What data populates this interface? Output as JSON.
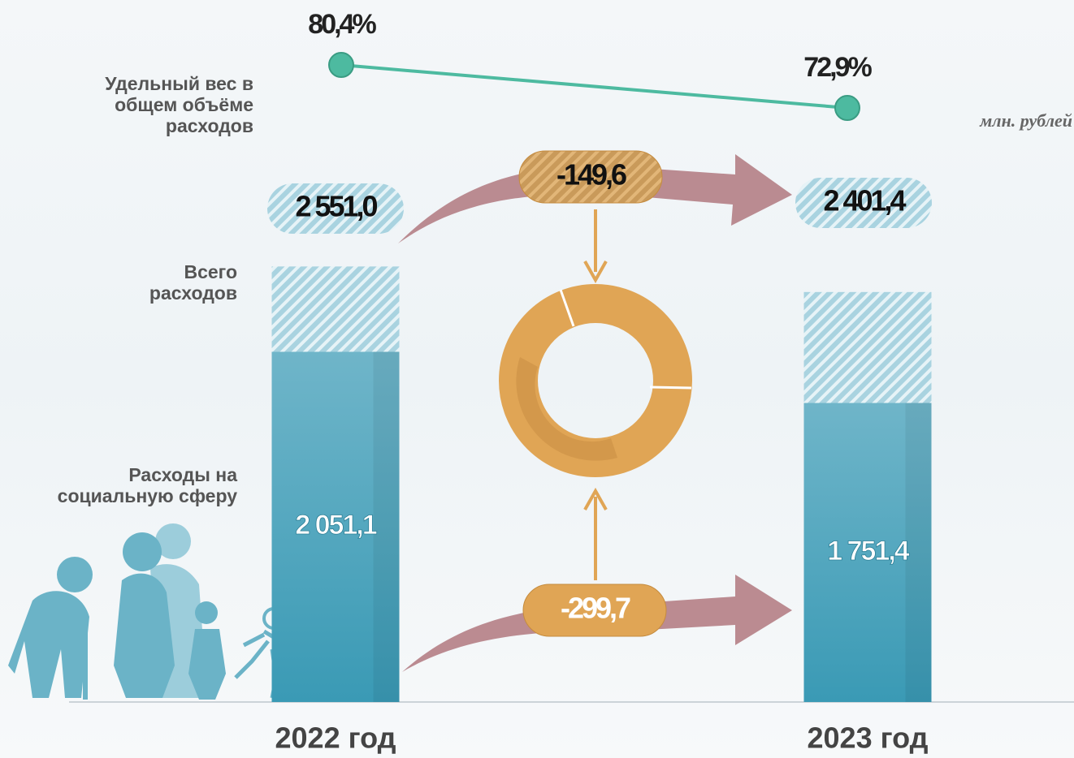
{
  "chart_data": {
    "type": "bar",
    "unit": "млн. рублей",
    "categories": [
      "2022 год",
      "2023 год"
    ],
    "ylim": [
      0,
      2700
    ],
    "y2lim": [
      70,
      85
    ],
    "series": [
      {
        "name": "Всего расходов",
        "color": "#a9d3e0",
        "values": [
          2551.0,
          2401.4
        ],
        "value_labels": [
          "2 551,0",
          "2 401,4"
        ]
      },
      {
        "name": "Расходы на социальную сферу",
        "color": "#4aa3bd",
        "values": [
          2051.1,
          1751.4
        ],
        "value_labels": [
          "2 051,1",
          "1 751,4"
        ]
      },
      {
        "name": "Удельный вес в общем объёме расходов",
        "type": "line",
        "axis": "y2",
        "color": "#4dbaa0",
        "values": [
          80.4,
          72.9
        ],
        "value_labels": [
          "80,4%",
          "72,9%"
        ]
      }
    ],
    "differences": {
      "values": [
        -149.6,
        -299.7
      ],
      "value_labels": [
        "-149,6",
        "-299,7"
      ]
    }
  }
}
